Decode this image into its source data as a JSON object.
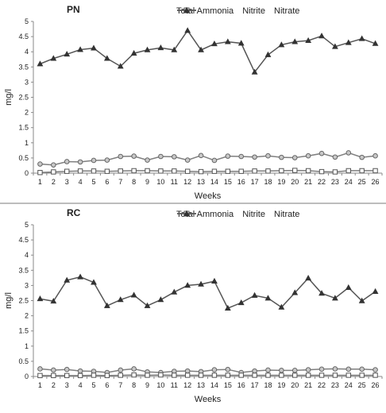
{
  "chart_data": [
    {
      "type": "line",
      "title": "PN",
      "xlabel": "Weeks",
      "ylabel": "mg/l",
      "ylim": [
        0,
        5
      ],
      "yticks": [
        "0",
        "0.5",
        "1",
        "1.5",
        "2",
        "2.5",
        "3",
        "3.5",
        "4",
        "4.5",
        "5"
      ],
      "categories": [
        "1",
        "2",
        "3",
        "4",
        "5",
        "6",
        "7",
        "8",
        "9",
        "10",
        "11",
        "12",
        "13",
        "14",
        "15",
        "16",
        "17",
        "18",
        "19",
        "20",
        "21",
        "22",
        "23",
        "24",
        "25",
        "26"
      ],
      "legend_position": "top-right",
      "grid": false,
      "series": [
        {
          "name": "Total Ammonia",
          "marker": "circle",
          "color": "#7f7f7f",
          "values": [
            0.3,
            0.27,
            0.38,
            0.37,
            0.42,
            0.43,
            0.55,
            0.56,
            0.43,
            0.55,
            0.54,
            0.43,
            0.58,
            0.42,
            0.56,
            0.55,
            0.53,
            0.57,
            0.52,
            0.51,
            0.57,
            0.65,
            0.53,
            0.67,
            0.52,
            0.57
          ]
        },
        {
          "name": "Nitrite",
          "marker": "square",
          "color": "#7f7f7f",
          "values": [
            0.02,
            0.04,
            0.06,
            0.07,
            0.07,
            0.06,
            0.07,
            0.08,
            0.08,
            0.07,
            0.07,
            0.06,
            0.05,
            0.06,
            0.06,
            0.06,
            0.07,
            0.07,
            0.08,
            0.09,
            0.08,
            0.05,
            0.04,
            0.08,
            0.08,
            0.08
          ]
        },
        {
          "name": "Nitrate",
          "marker": "triangle",
          "color": "#555555",
          "values": [
            3.6,
            3.78,
            3.92,
            4.07,
            4.12,
            3.78,
            3.52,
            3.95,
            4.06,
            4.13,
            4.06,
            4.7,
            4.06,
            4.26,
            4.33,
            4.28,
            3.33,
            3.9,
            4.23,
            4.33,
            4.37,
            4.52,
            4.17,
            4.3,
            4.43,
            4.27
          ]
        }
      ]
    },
    {
      "type": "line",
      "title": "RC",
      "xlabel": "Weeks",
      "ylabel": "mg/l",
      "ylim": [
        0,
        5
      ],
      "yticks": [
        "0",
        "0.5",
        "1",
        "1.5",
        "2",
        "2.5",
        "3",
        "3.5",
        "4",
        "4.5",
        "5"
      ],
      "categories": [
        "1",
        "2",
        "3",
        "4",
        "5",
        "6",
        "7",
        "8",
        "9",
        "10",
        "11",
        "12",
        "13",
        "14",
        "15",
        "16",
        "17",
        "18",
        "19",
        "20",
        "21",
        "22",
        "23",
        "24",
        "25",
        "26"
      ],
      "legend_position": "top-right",
      "grid": false,
      "series": [
        {
          "name": "Total Ammonia",
          "marker": "circle",
          "color": "#7f7f7f",
          "values": [
            0.25,
            0.21,
            0.23,
            0.18,
            0.17,
            0.13,
            0.21,
            0.25,
            0.15,
            0.13,
            0.17,
            0.18,
            0.16,
            0.22,
            0.23,
            0.13,
            0.18,
            0.21,
            0.2,
            0.2,
            0.22,
            0.24,
            0.25,
            0.24,
            0.24,
            0.22
          ]
        },
        {
          "name": "Nitrite",
          "marker": "square",
          "color": "#7f7f7f",
          "values": [
            0.03,
            0.03,
            0.03,
            0.03,
            0.04,
            0.03,
            0.04,
            0.05,
            0.04,
            0.05,
            0.04,
            0.04,
            0.04,
            0.04,
            0.04,
            0.04,
            0.04,
            0.04,
            0.04,
            0.04,
            0.04,
            0.04,
            0.04,
            0.04,
            0.04,
            0.04
          ]
        },
        {
          "name": "Nitrate",
          "marker": "triangle",
          "color": "#555555",
          "values": [
            2.56,
            2.48,
            3.17,
            3.28,
            3.1,
            2.33,
            2.53,
            2.68,
            2.33,
            2.53,
            2.78,
            3.0,
            3.04,
            3.14,
            2.25,
            2.43,
            2.67,
            2.58,
            2.28,
            2.76,
            3.24,
            2.74,
            2.58,
            2.93,
            2.49,
            2.8
          ]
        }
      ]
    }
  ]
}
